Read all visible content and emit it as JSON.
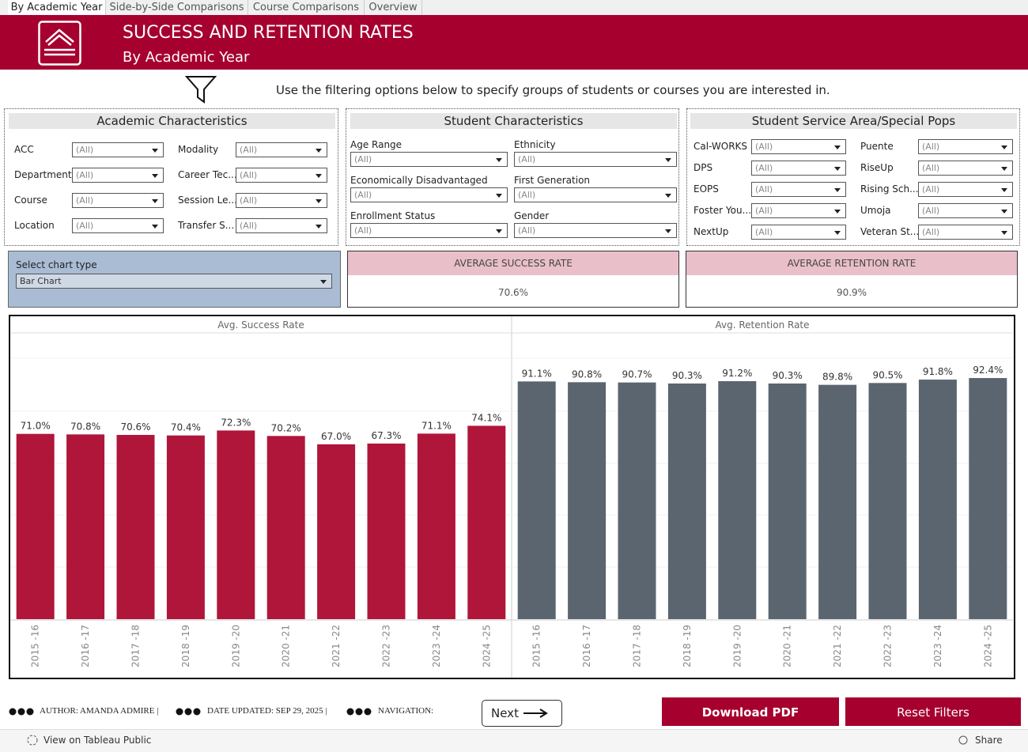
{
  "tabs": [
    "By Academic Year",
    "Side-by-Side Comparisons",
    "Course Comparisons",
    "Overview"
  ],
  "header": {
    "title": "SUCCESS AND RETENTION RATES",
    "subtitle": "By Academic Year"
  },
  "instructions": "Use the filtering options below to specify groups of students or courses you are interested in.",
  "filter_panels": [
    {
      "title": "Academic Characteristics",
      "filters": [
        {
          "label": "ACC",
          "value": "(All)"
        },
        {
          "label": "Department",
          "value": "(All)"
        },
        {
          "label": "Course",
          "value": "(All)"
        },
        {
          "label": "Location",
          "value": "(All)"
        },
        {
          "label": "Modality",
          "value": "(All)"
        },
        {
          "label": "Career Tec...",
          "value": "(All)"
        },
        {
          "label": "Session Le...",
          "value": "(All)"
        },
        {
          "label": "Transfer S...",
          "value": "(All)"
        }
      ]
    },
    {
      "title": "Student Characteristics",
      "filters": [
        {
          "label": "Age Range",
          "value": "(All)"
        },
        {
          "label": "Economically Disadvantaged",
          "value": "(All)"
        },
        {
          "label": "Enrollment Status",
          "value": "(All)"
        },
        {
          "label": "Ethnicity",
          "value": "(All)"
        },
        {
          "label": "First Generation",
          "value": "(All)"
        },
        {
          "label": "Gender",
          "value": "(All)"
        }
      ]
    },
    {
      "title": "Student Service Area/Special Pops",
      "filters": [
        {
          "label": "Cal-WORKS",
          "value": "(All)"
        },
        {
          "label": "DPS",
          "value": "(All)"
        },
        {
          "label": "EOPS",
          "value": "(All)"
        },
        {
          "label": "Foster You...",
          "value": "(All)"
        },
        {
          "label": "NextUp",
          "value": "(All)"
        },
        {
          "label": "Puente",
          "value": "(All)"
        },
        {
          "label": "RiseUp",
          "value": "(All)"
        },
        {
          "label": "Rising Sch...",
          "value": "(All)"
        },
        {
          "label": "Umoja",
          "value": "(All)"
        },
        {
          "label": "Veteran St...",
          "value": "(All)"
        }
      ]
    }
  ],
  "chart_selector": {
    "label": "Select chart type",
    "value": "Bar Chart"
  },
  "kpis": [
    {
      "label": "AVERAGE SUCCESS RATE",
      "value": "70.6%"
    },
    {
      "label": "AVERAGE RETENTION RATE",
      "value": "90.9%"
    }
  ],
  "chart_data": {
    "type": "bar",
    "categories": [
      "2015 -16",
      "2016 -17",
      "2017 -18",
      "2018 -19",
      "2019 -20",
      "2020 -21",
      "2021 -22",
      "2022 -23",
      "2023 -24",
      "2024 -25"
    ],
    "series": [
      {
        "name": "Avg. Success Rate",
        "color": "#b01639",
        "values": [
          71.0,
          70.8,
          70.6,
          70.4,
          72.3,
          70.2,
          67.0,
          67.3,
          71.1,
          74.1
        ],
        "value_labels": [
          "71.0%",
          "70.8%",
          "70.6%",
          "70.4%",
          "72.3%",
          "70.2%",
          "67.0%",
          "67.3%",
          "71.1%",
          "74.1%"
        ]
      },
      {
        "name": "Avg. Retention Rate",
        "color": "#5b6570",
        "values": [
          91.1,
          90.8,
          90.7,
          90.3,
          91.2,
          90.3,
          89.8,
          90.5,
          91.8,
          92.4
        ],
        "value_labels": [
          "91.1%",
          "90.8%",
          "90.7%",
          "90.3%",
          "91.2%",
          "90.3%",
          "89.8%",
          "90.5%",
          "91.8%",
          "92.4%"
        ]
      }
    ]
  },
  "footer": {
    "author": "AUTHOR: AMANDA ADMIRE |",
    "date": "DATE UPDATED: SEP 29, 2025 |",
    "navigation": "NAVIGATION:",
    "next": "Next",
    "download": "Download PDF",
    "reset": "Reset Filters"
  },
  "toolbar": {
    "view": "View on Tableau Public",
    "share": "Share"
  }
}
